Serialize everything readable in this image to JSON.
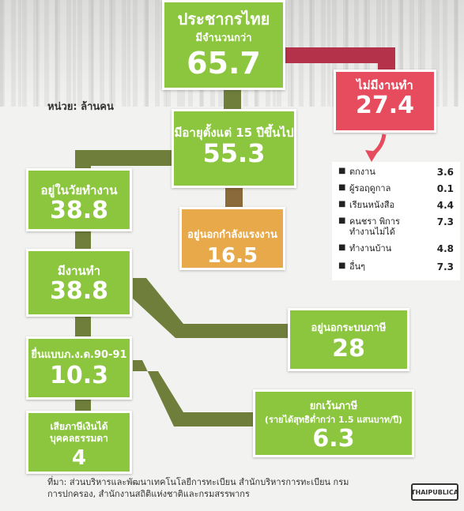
{
  "top": {
    "title": "ประชากรไทย",
    "subtitle": "มีจำนวนกว่า",
    "value": "65.7"
  },
  "unemployed_box": {
    "label": "ไม่มีงานทำ",
    "value": "27.4"
  },
  "unit": "หน่วย: ล้านคน",
  "age15": {
    "label": "มีอายุตั้งแต่ 15 ปีขึ้นไป",
    "value": "55.3"
  },
  "labor": {
    "label": "อยู่ในวัยทำงาน",
    "value": "38.8"
  },
  "outside": {
    "label": "อยู่นอกกำลังแรงงาน",
    "value": "16.5"
  },
  "employed": {
    "label": "มีงานทำ",
    "value": "38.8"
  },
  "outside_tax": {
    "label": "อยู่นอกระบบภาษี",
    "value": "28"
  },
  "filed": {
    "label": "ยื่นแบบภ.ง.ด.90-91",
    "value": "10.3"
  },
  "exempt": {
    "label": "ยกเว้นภาษี",
    "sublabel": "(รายได้สุทธิต่ำกว่า 1.5 แสนบาท/ปี)",
    "value": "6.3"
  },
  "taxpayer": {
    "label": "เสียภาษีเงินได้บุคคลธรรมดา",
    "value": "4"
  },
  "breakdown": [
    {
      "label": "ตกงาน",
      "value": "3.6"
    },
    {
      "label": "ผู้รอฤดูกาล",
      "value": "0.1"
    },
    {
      "label": "เรียนหนังสือ",
      "value": "4.4"
    },
    {
      "label": "คนชรา พิการ ทำงานไม่ได้",
      "value": "7.3"
    },
    {
      "label": "ทำงานบ้าน",
      "value": "4.8"
    },
    {
      "label": "อื่นๆ",
      "value": "7.3"
    }
  ],
  "source": "ที่มา: ส่วนบริหารและพัฒนาเทคโนโลยีการทะเบียน สำนักบริหารการทะเบียน กรมการปกครอง, สำนักงานสถิติแห่งชาติและกรมสรรพากร",
  "logo": "THAIPUBLICA",
  "colors": {
    "green": "#8cc63f",
    "red": "#e74c5e",
    "orange": "#e8a94a"
  }
}
